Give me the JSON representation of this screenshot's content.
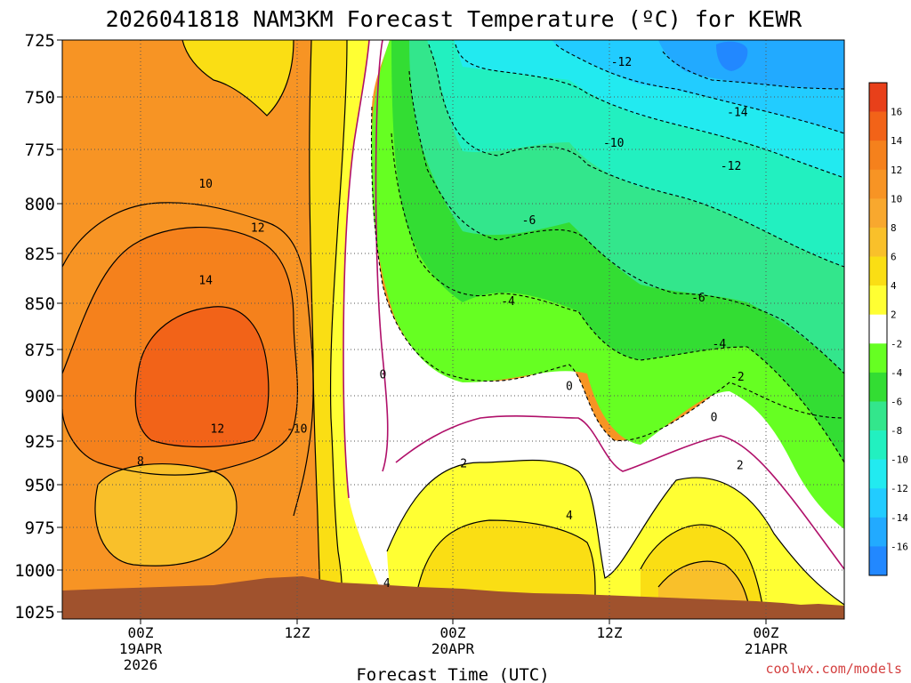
{
  "chart_data": {
    "type": "contour",
    "title": "2026041818 NAM3KM Forecast Temperature (ºC) for KEWR",
    "xlabel": "Forecast Time (UTC)",
    "ylabel": "",
    "y_ticks": [
      "725",
      "750",
      "775",
      "800",
      "825",
      "850",
      "875",
      "900",
      "925",
      "950",
      "975",
      "1000",
      "1025"
    ],
    "y_range_hpa": [
      725,
      1025
    ],
    "x_ticks": [
      {
        "time_hours": 6,
        "lines": [
          "00Z",
          "19APR",
          "2026"
        ]
      },
      {
        "time_hours": 18,
        "lines": [
          "12Z"
        ]
      },
      {
        "time_hours": 30,
        "lines": [
          "00Z",
          "20APR"
        ]
      },
      {
        "time_hours": 42,
        "lines": [
          "12Z"
        ]
      },
      {
        "time_hours": 54,
        "lines": [
          "00Z",
          "21APR"
        ]
      }
    ],
    "x_range_hours": [
      0,
      60
    ],
    "colorbar": {
      "levels": [
        "16",
        "14",
        "12",
        "10",
        "8",
        "6",
        "4",
        "2",
        "-2",
        "-4",
        "-6",
        "-8",
        "-10",
        "-12",
        "-14",
        "-16"
      ],
      "colors": [
        "#e8401a",
        "#f26318",
        "#f5811c",
        "#f79424",
        "#f8a82e",
        "#f9c02a",
        "#fade14",
        "#ffff33",
        "#ffffff",
        "#66ff22",
        "#33dd33",
        "#33e68c",
        "#22f0c0",
        "#22eaf0",
        "#22ccff",
        "#22aaff",
        "#2288ff"
      ]
    },
    "contour_labels": [
      {
        "text": "10",
        "time_hours": 11.0,
        "hpa": 800
      },
      {
        "text": "12",
        "time_hours": 15.0,
        "hpa": 823
      },
      {
        "text": "14",
        "time_hours": 11.0,
        "hpa": 850
      },
      {
        "text": "12",
        "time_hours": 11.9,
        "hpa": 927
      },
      {
        "text": "8",
        "time_hours": 6.0,
        "hpa": 944
      },
      {
        "text": "-10",
        "time_hours": 18.0,
        "hpa": 927
      },
      {
        "text": "0",
        "time_hours": 24.6,
        "hpa": 899
      },
      {
        "text": "4",
        "time_hours": 24.9,
        "hpa": 1007
      },
      {
        "text": "2",
        "time_hours": 30.8,
        "hpa": 945
      },
      {
        "text": "0",
        "time_hours": 38.9,
        "hpa": 905
      },
      {
        "text": "4",
        "time_hours": 38.9,
        "hpa": 972
      },
      {
        "text": "0",
        "time_hours": 50.0,
        "hpa": 921
      },
      {
        "text": "2",
        "time_hours": 52.0,
        "hpa": 946
      },
      {
        "text": "-2",
        "time_hours": 51.8,
        "hpa": 900
      },
      {
        "text": "-4",
        "time_hours": 34.2,
        "hpa": 861
      },
      {
        "text": "-4",
        "time_hours": 50.4,
        "hpa": 883
      },
      {
        "text": "-6",
        "time_hours": 35.8,
        "hpa": 819
      },
      {
        "text": "-6",
        "time_hours": 48.8,
        "hpa": 859
      },
      {
        "text": "-10",
        "time_hours": 42.3,
        "hpa": 779
      },
      {
        "text": "-12",
        "time_hours": 42.9,
        "hpa": 737
      },
      {
        "text": "-12",
        "time_hours": 51.3,
        "hpa": 791
      },
      {
        "text": "-14",
        "time_hours": 51.8,
        "hpa": 763
      }
    ],
    "ground_color": "#a0522d",
    "x_time_labels_note": "forecast time in hours from 2026-04-18 18Z"
  },
  "credit": "coolwx.com/models"
}
